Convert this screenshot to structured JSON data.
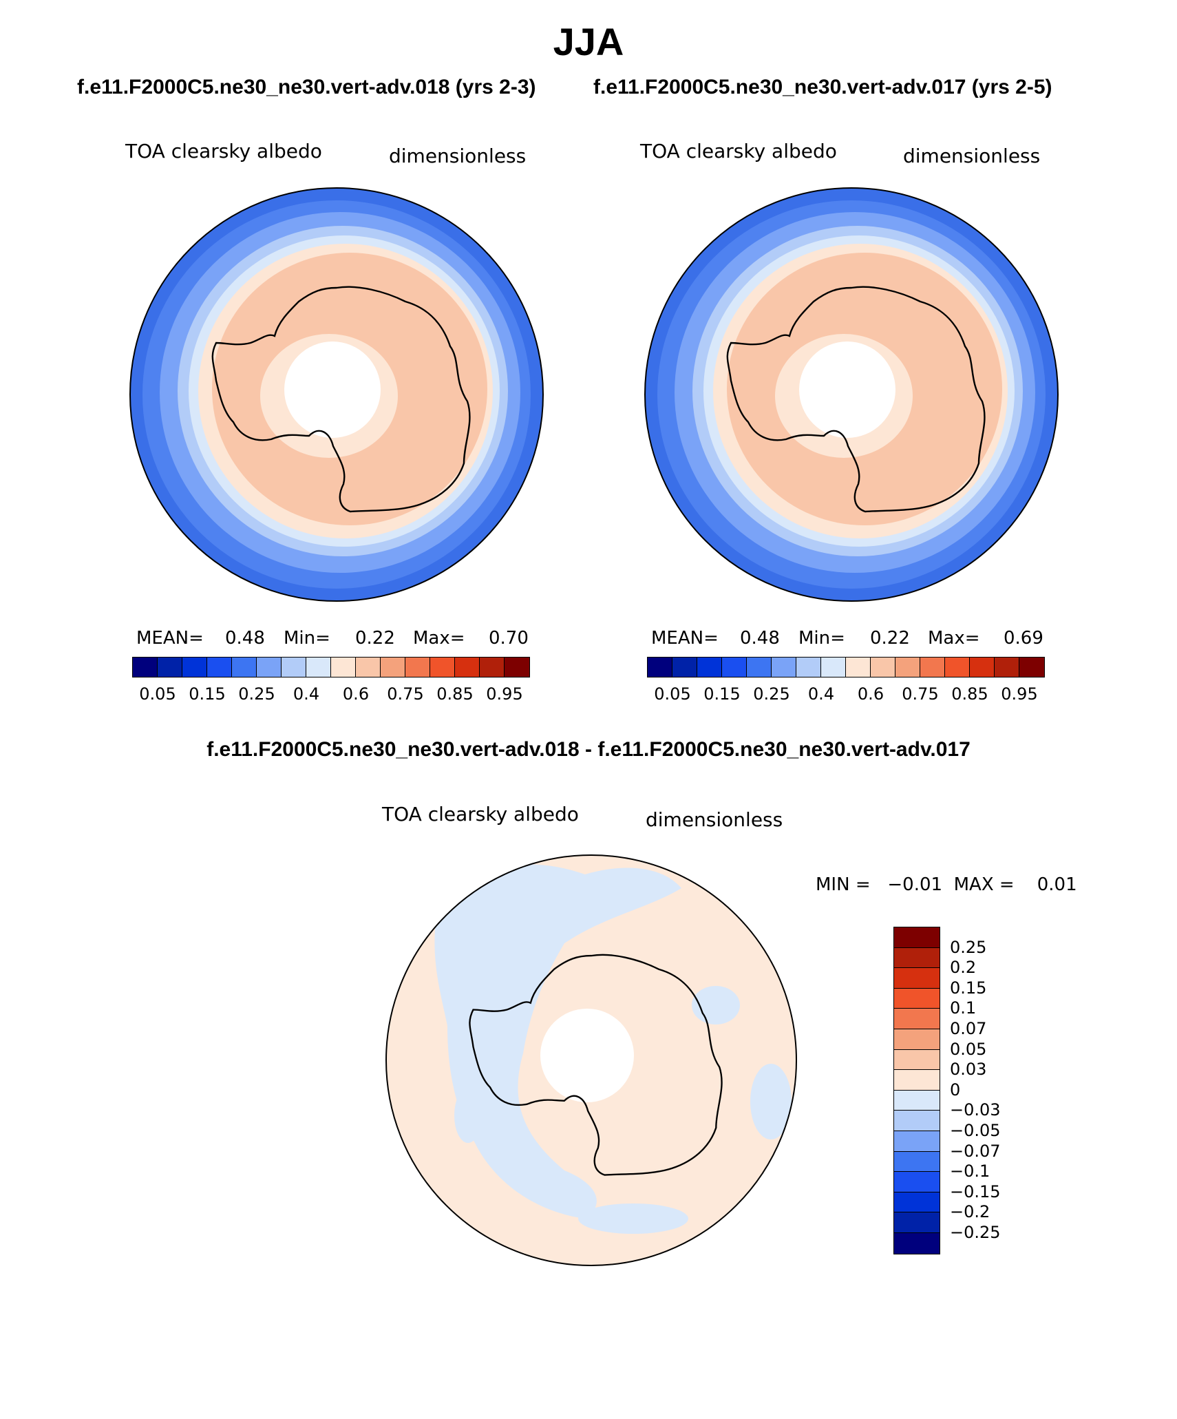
{
  "title": "JJA",
  "panels": [
    {
      "case_title": "f.e11.F2000C5.ne30_ne30.vert-adv.018 (yrs 2-3)",
      "variable": "TOA clearsky albedo",
      "units": "dimensionless",
      "stats": {
        "mean_label": "MEAN=",
        "mean": "0.48",
        "min_label": "Min=",
        "min": "0.22",
        "max_label": "Max=",
        "max": "0.70"
      }
    },
    {
      "case_title": "f.e11.F2000C5.ne30_ne30.vert-adv.017 (yrs 2-5)",
      "variable": "TOA clearsky albedo",
      "units": "dimensionless",
      "stats": {
        "mean_label": "MEAN=",
        "mean": "0.48",
        "min_label": "Min=",
        "min": "0.22",
        "max_label": "Max=",
        "max": "0.69"
      }
    }
  ],
  "colorbar": {
    "labels": [
      "0.05",
      "0.15",
      "0.25",
      "0.4",
      "0.6",
      "0.75",
      "0.85",
      "0.95"
    ],
    "colors": [
      "#00007d",
      "#0022a8",
      "#0033d8",
      "#1a4ff0",
      "#3d75f2",
      "#7aa3f7",
      "#b2ccf8",
      "#d9e8fa",
      "#fde6d5",
      "#f9c6a9",
      "#f4a27c",
      "#f2774e",
      "#f0542a",
      "#d6300f",
      "#b0200a",
      "#7d0000"
    ]
  },
  "difference": {
    "title": "f.e11.F2000C5.ne30_ne30.vert-adv.018 - f.e11.F2000C5.ne30_ne30.vert-adv.017",
    "variable": "TOA clearsky albedo",
    "units": "dimensionless",
    "minmax": "MIN =   −0.01  MAX =    0.01",
    "colorbar_labels": [
      "0.25",
      "0.2",
      "0.15",
      "0.1",
      "0.07",
      "0.05",
      "0.03",
      "0",
      "−0.03",
      "−0.05",
      "−0.07",
      "−0.1",
      "−0.15",
      "−0.2",
      "−0.25"
    ],
    "colorbar_colors": [
      "#7d0000",
      "#b0200a",
      "#d6300f",
      "#f0542a",
      "#f2774e",
      "#f4a27c",
      "#f9c6a9",
      "#fde6d5",
      "#d9e8fa",
      "#b2ccf8",
      "#7aa3f7",
      "#3d75f2",
      "#1a4ff0",
      "#0033d8",
      "#0022a8",
      "#00007d"
    ]
  }
}
